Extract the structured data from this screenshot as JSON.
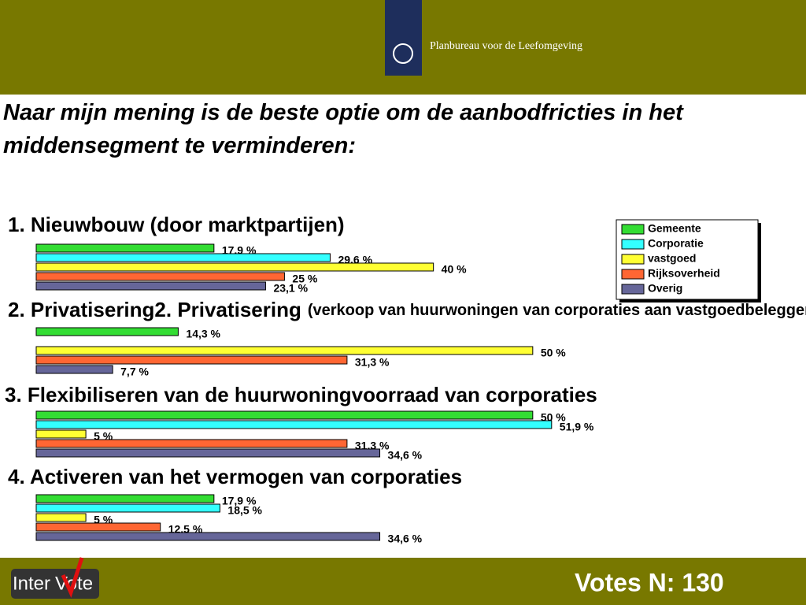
{
  "header": {
    "organization": "Planbureau voor de Leefomgeving"
  },
  "footer": {
    "logo_left": "Inter",
    "logo_right": "Vote",
    "votes": "Votes N: 130"
  },
  "chart_data": {
    "type": "bar",
    "title": "Naar mijn mening is de beste optie om de aanbodfricties in het middensegment te verminderen:",
    "categories": [
      "1. Nieuwbouw (door marktpartijen)",
      "2. Privatisering",
      "3. Flexibiliseren van de huurwoningvoorraad van corporaties",
      "4. Activeren van het vermogen van corporaties"
    ],
    "category_subtitles": [
      null,
      "(verkoop van huurwoningen van corporaties aan vastgoedbeleggers)",
      null,
      null
    ],
    "xlim": [
      0,
      60
    ],
    "series": [
      {
        "name": "Gemeente",
        "color": "#33dd33",
        "values": [
          17.9,
          14.3,
          50,
          17.9
        ],
        "value_labels": [
          "17.9 %",
          "14,3 %",
          "50 %",
          "17,9 %"
        ]
      },
      {
        "name": "Corporatie",
        "color": "#33ffff",
        "values": [
          29.6,
          null,
          51.9,
          18.5
        ],
        "value_labels": [
          "29.6 %",
          null,
          "51,9 %",
          "18,5 %"
        ]
      },
      {
        "name": "vastgoed",
        "color": "#ffff33",
        "values": [
          40,
          50,
          5,
          5
        ],
        "value_labels": [
          "40 %",
          "50 %",
          "5 %",
          "5 %"
        ]
      },
      {
        "name": "Rijksoverheid",
        "color": "#ff6633",
        "values": [
          25,
          31.3,
          31.3,
          12.5
        ],
        "value_labels": [
          "25 %",
          "31,3 %",
          "31.3 %",
          "12.5 %"
        ]
      },
      {
        "name": "Overig",
        "color": "#666699",
        "values": [
          23.1,
          7.7,
          34.6,
          34.6
        ],
        "value_labels": [
          "23,1 %",
          "7,7 %",
          "34,6 %",
          "34,6 %"
        ]
      }
    ],
    "legend": "top-right"
  }
}
